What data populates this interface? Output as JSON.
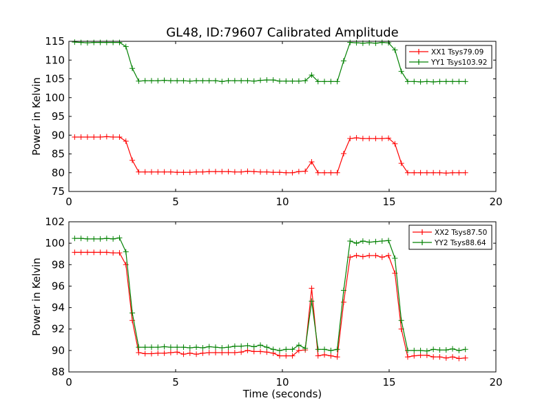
{
  "chart_data": [
    {
      "type": "line",
      "title": "GL48, ID:79607 Calibrated Amplitude",
      "xlabel": "",
      "ylabel": "Power in Kelvin",
      "xlim": [
        0,
        20
      ],
      "ylim": [
        75,
        115
      ],
      "xticks": [
        0,
        5,
        10,
        15,
        20
      ],
      "yticks": [
        75,
        80,
        85,
        90,
        95,
        100,
        105,
        110,
        115
      ],
      "grid": false,
      "legend_position": "top-right",
      "x": [
        0.27,
        0.57,
        0.87,
        1.17,
        1.47,
        1.77,
        2.07,
        2.37,
        2.67,
        2.97,
        3.27,
        3.57,
        3.87,
        4.17,
        4.47,
        4.77,
        5.07,
        5.37,
        5.67,
        5.97,
        6.27,
        6.57,
        6.87,
        7.17,
        7.47,
        7.77,
        8.07,
        8.37,
        8.67,
        8.97,
        9.27,
        9.57,
        9.87,
        10.17,
        10.47,
        10.77,
        11.07,
        11.37,
        11.67,
        11.97,
        12.27,
        12.57,
        12.87,
        13.17,
        13.47,
        13.77,
        14.07,
        14.37,
        14.67,
        14.97,
        15.27,
        15.57,
        15.87,
        16.17,
        16.47,
        16.77,
        17.07,
        17.37,
        17.67,
        17.97,
        18.27,
        18.57
      ],
      "series": [
        {
          "name": "XX1 Tsys79.09",
          "color": "#ff0000",
          "values": [
            89.5,
            89.5,
            89.5,
            89.5,
            89.5,
            89.6,
            89.5,
            89.5,
            88.4,
            83.3,
            80.2,
            80.2,
            80.2,
            80.2,
            80.2,
            80.2,
            80.1,
            80.1,
            80.1,
            80.2,
            80.2,
            80.3,
            80.3,
            80.3,
            80.3,
            80.2,
            80.2,
            80.4,
            80.3,
            80.2,
            80.2,
            80.1,
            80.1,
            80.0,
            80.0,
            80.3,
            80.4,
            82.9,
            80.0,
            80.0,
            80.0,
            80.0,
            85.1,
            89.1,
            89.3,
            89.1,
            89.1,
            89.1,
            89.1,
            89.2,
            87.7,
            82.5,
            80.0,
            80.0,
            80.0,
            80.0,
            80.0,
            80.0,
            79.9,
            80.0,
            80.0,
            80.0
          ]
        },
        {
          "name": "YY1 Tsys103.92",
          "color": "#008000",
          "values": [
            114.8,
            114.7,
            114.6,
            114.7,
            114.7,
            114.7,
            114.7,
            114.7,
            113.6,
            107.8,
            104.4,
            104.5,
            104.5,
            104.5,
            104.6,
            104.5,
            104.5,
            104.5,
            104.4,
            104.5,
            104.5,
            104.5,
            104.5,
            104.3,
            104.5,
            104.5,
            104.5,
            104.5,
            104.4,
            104.6,
            104.7,
            104.7,
            104.4,
            104.4,
            104.4,
            104.4,
            104.5,
            106.0,
            104.3,
            104.3,
            104.3,
            104.3,
            109.8,
            114.7,
            114.6,
            114.5,
            114.6,
            114.5,
            114.7,
            114.6,
            112.7,
            107.0,
            104.3,
            104.3,
            104.2,
            104.3,
            104.2,
            104.3,
            104.3,
            104.3,
            104.3,
            104.3
          ]
        }
      ]
    },
    {
      "type": "line",
      "title": "",
      "xlabel": "Time (seconds)",
      "ylabel": "Power in Kelvin",
      "xlim": [
        0,
        20
      ],
      "ylim": [
        88,
        102
      ],
      "xticks": [
        0,
        5,
        10,
        15,
        20
      ],
      "yticks": [
        88,
        90,
        92,
        94,
        96,
        98,
        100,
        102
      ],
      "grid": false,
      "legend_position": "top-right",
      "x": [
        0.27,
        0.57,
        0.87,
        1.17,
        1.47,
        1.77,
        2.07,
        2.37,
        2.67,
        2.97,
        3.27,
        3.57,
        3.87,
        4.17,
        4.47,
        4.77,
        5.07,
        5.37,
        5.67,
        5.97,
        6.27,
        6.57,
        6.87,
        7.17,
        7.47,
        7.77,
        8.07,
        8.37,
        8.67,
        8.97,
        9.27,
        9.57,
        9.87,
        10.17,
        10.47,
        10.77,
        11.07,
        11.37,
        11.67,
        11.97,
        12.27,
        12.57,
        12.87,
        13.17,
        13.47,
        13.77,
        14.07,
        14.37,
        14.67,
        14.97,
        15.27,
        15.57,
        15.87,
        16.17,
        16.47,
        16.77,
        17.07,
        17.37,
        17.67,
        17.97,
        18.27,
        18.57
      ],
      "series": [
        {
          "name": "XX2 Tsys87.50",
          "color": "#ff0000",
          "values": [
            99.15,
            99.15,
            99.15,
            99.15,
            99.15,
            99.15,
            99.1,
            99.1,
            98.0,
            92.8,
            89.8,
            89.7,
            89.7,
            89.75,
            89.75,
            89.8,
            89.85,
            89.65,
            89.75,
            89.65,
            89.75,
            89.8,
            89.8,
            89.8,
            89.8,
            89.8,
            89.85,
            90.0,
            89.9,
            89.9,
            89.85,
            89.75,
            89.5,
            89.5,
            89.5,
            90.0,
            90.05,
            95.8,
            89.5,
            89.6,
            89.5,
            89.4,
            94.5,
            98.7,
            98.85,
            98.75,
            98.85,
            98.85,
            98.7,
            98.85,
            97.2,
            92.0,
            89.4,
            89.5,
            89.55,
            89.55,
            89.4,
            89.4,
            89.3,
            89.4,
            89.25,
            89.3
          ]
        },
        {
          "name": "YY2 Tsys88.64",
          "color": "#008000",
          "values": [
            100.45,
            100.45,
            100.4,
            100.4,
            100.4,
            100.45,
            100.4,
            100.5,
            99.2,
            93.5,
            90.3,
            90.3,
            90.3,
            90.3,
            90.35,
            90.3,
            90.3,
            90.3,
            90.25,
            90.3,
            90.25,
            90.35,
            90.3,
            90.25,
            90.3,
            90.4,
            90.4,
            90.45,
            90.35,
            90.5,
            90.3,
            90.1,
            90.0,
            90.1,
            90.1,
            90.5,
            90.2,
            94.6,
            90.1,
            90.1,
            90.0,
            90.1,
            95.6,
            100.2,
            100.0,
            100.2,
            100.1,
            100.15,
            100.2,
            100.25,
            98.6,
            92.8,
            90.0,
            90.0,
            90.0,
            89.95,
            90.1,
            90.05,
            90.05,
            90.15,
            90.0,
            90.1
          ]
        }
      ]
    }
  ]
}
